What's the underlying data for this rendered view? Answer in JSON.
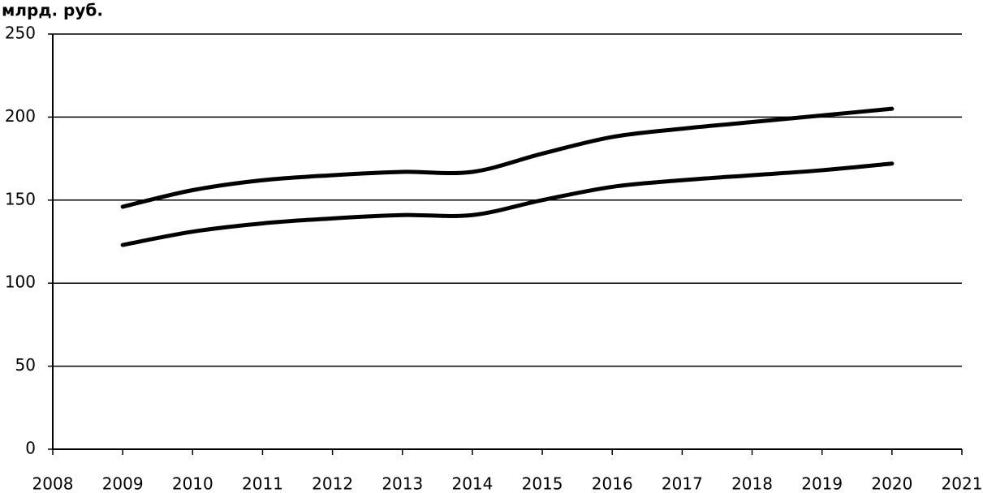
{
  "chart_data": {
    "type": "line",
    "y_axis_label": "млрд. руб.",
    "x": [
      2009,
      2010,
      2011,
      2012,
      2013,
      2014,
      2015,
      2016,
      2017,
      2018,
      2019,
      2020
    ],
    "series": [
      {
        "color": "#000000",
        "values": [
          146,
          156,
          162,
          165,
          167,
          167,
          178,
          188,
          193,
          197,
          201,
          205
        ]
      },
      {
        "color": "#000000",
        "values": [
          123,
          131,
          136,
          139,
          141,
          141,
          150,
          158,
          162,
          165,
          168,
          172
        ]
      }
    ],
    "xlim": [
      2008,
      2021
    ],
    "xticks": [
      2008,
      2009,
      2010,
      2011,
      2012,
      2013,
      2014,
      2015,
      2016,
      2017,
      2018,
      2019,
      2020,
      2021
    ],
    "ylim": [
      0,
      250
    ],
    "yticks": [
      0,
      50,
      100,
      150,
      200,
      250
    ],
    "grid": true
  }
}
